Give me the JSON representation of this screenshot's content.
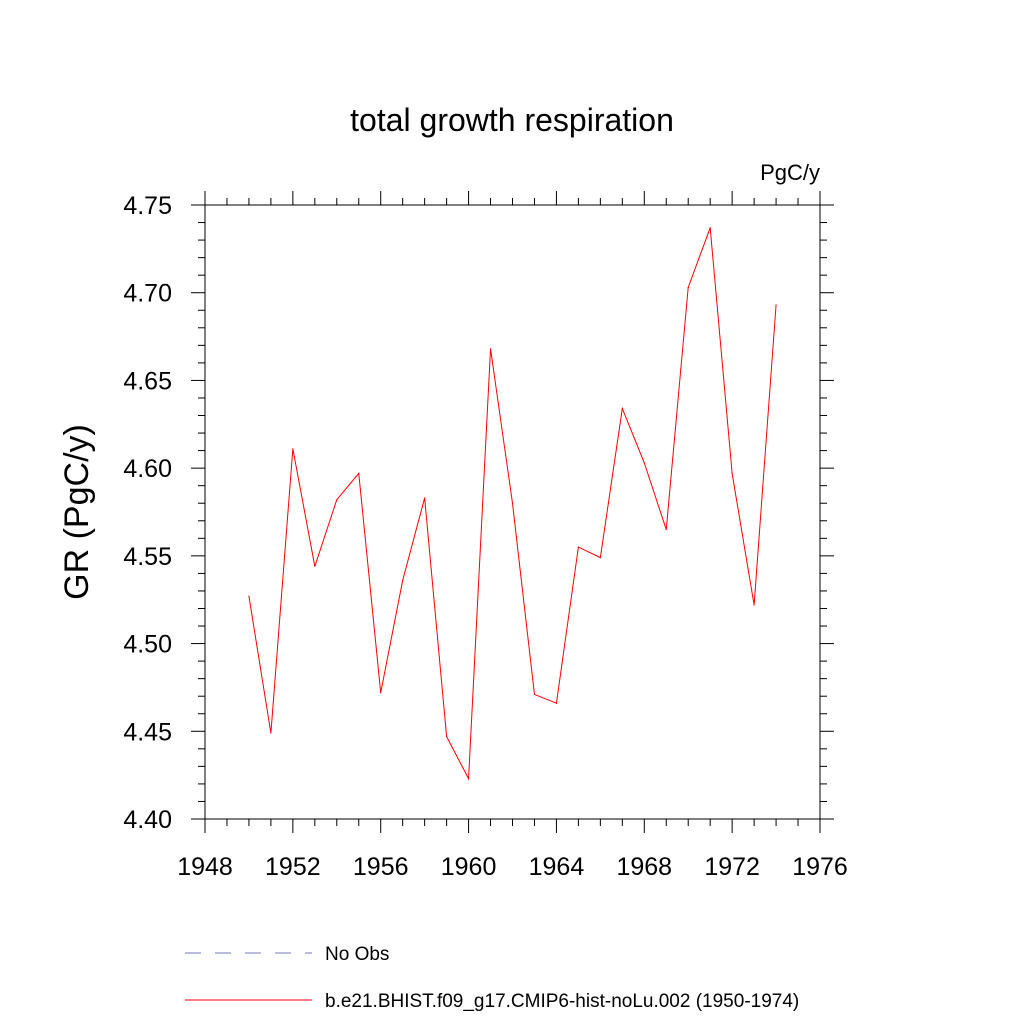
{
  "chart_data": {
    "type": "line",
    "title": "total growth respiration",
    "units_label": "PgC/y",
    "xlabel": "",
    "ylabel": "GR  (PgC/y)",
    "xlim": [
      1948,
      1976
    ],
    "ylim": [
      4.4,
      4.75
    ],
    "x_ticks": [
      "1948",
      "1952",
      "1956",
      "1960",
      "1964",
      "1968",
      "1972",
      "1976"
    ],
    "y_ticks": [
      "4.40",
      "4.45",
      "4.50",
      "4.55",
      "4.60",
      "4.65",
      "4.70",
      "4.75"
    ],
    "grid": false,
    "legend_placement": "bottom",
    "series": [
      {
        "name": "b.e21.BHIST.f09_g17.CMIP6-hist-noLu.002 (1950-1974)",
        "color": "#ff0000",
        "style": "solid",
        "x": [
          1950,
          1951,
          1952,
          1953,
          1954,
          1955,
          1956,
          1957,
          1958,
          1959,
          1960,
          1961,
          1962,
          1963,
          1964,
          1965,
          1966,
          1967,
          1968,
          1969,
          1970,
          1971,
          1972,
          1973,
          1974
        ],
        "values": [
          4.527,
          4.449,
          4.611,
          4.544,
          4.582,
          4.597,
          4.472,
          4.536,
          4.583,
          4.447,
          4.423,
          4.668,
          4.58,
          4.471,
          4.466,
          4.555,
          4.549,
          4.634,
          4.603,
          4.565,
          4.703,
          4.737,
          4.597,
          4.522,
          4.693
        ]
      }
    ],
    "legend": [
      {
        "label": "No Obs",
        "color": "#7a7ab8",
        "style": "dashed"
      },
      {
        "label": "b.e21.BHIST.f09_g17.CMIP6-hist-noLu.002 (1950-1974)",
        "color": "#ff0000",
        "style": "solid"
      }
    ]
  }
}
